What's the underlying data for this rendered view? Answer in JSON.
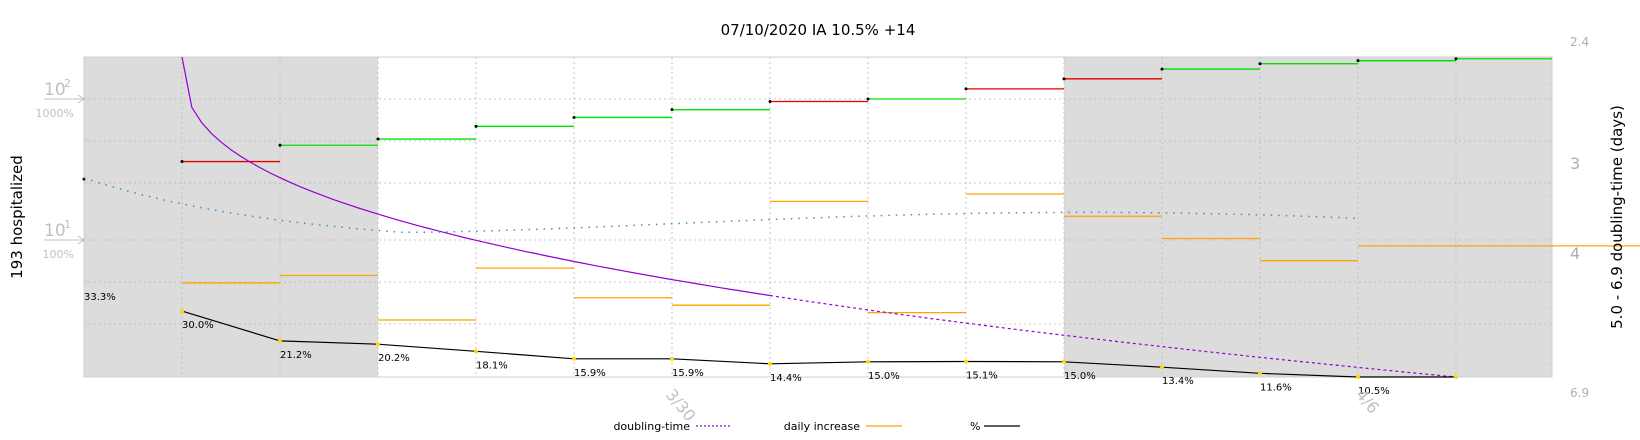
{
  "chart_data": {
    "type": "line",
    "title": "07/10/2020 IA 10.5% +14",
    "ylabel_left": "193 hospitalized",
    "ylabel_right": "5.0 - 6.9 doubling-time (days)",
    "y_left_scale": "log",
    "y_left_ticks": [
      {
        "value": 100,
        "label": "10",
        "exp": "2",
        "pct": "1000%"
      },
      {
        "value": 10,
        "label": "10",
        "exp": "1",
        "pct": "100%"
      }
    ],
    "y_right_ticks": [
      "2.4",
      "3",
      "4",
      "4",
      "6.9"
    ],
    "x_tick_labels": [
      "3/30",
      "4/6"
    ],
    "grid": true,
    "shaded_regions": "weekends (gray background)",
    "legend": [
      {
        "label": "doubling-time",
        "color": "#9400d3",
        "style": "dotted"
      },
      {
        "label": "daily increase",
        "color": "#ffa500",
        "style": "solid"
      },
      {
        "label": "%",
        "color": "#000000",
        "style": "solid"
      }
    ],
    "daily_pct_labels": [
      "33.3%",
      "30.0%",
      "21.2%",
      "20.2%",
      "18.1%",
      "15.9%",
      "15.9%",
      "14.4%",
      "15.0%",
      "15.1%",
      "15.0%",
      "13.4%",
      "11.6%",
      "10.5%"
    ],
    "daily_pct_values": [
      33.3,
      30.0,
      21.2,
      20.2,
      18.1,
      15.9,
      15.9,
      14.4,
      15.0,
      15.1,
      15.0,
      13.4,
      11.6,
      10.5
    ],
    "hospitalized_steps": [
      {
        "value": 36,
        "color": "red"
      },
      {
        "value": 47,
        "color": "green"
      },
      {
        "value": 52,
        "color": "green"
      },
      {
        "value": 64,
        "color": "green"
      },
      {
        "value": 74,
        "color": "green"
      },
      {
        "value": 84,
        "color": "green"
      },
      {
        "value": 96,
        "color": "red"
      },
      {
        "value": 100,
        "color": "green"
      },
      {
        "value": 118,
        "color": "red"
      },
      {
        "value": 139,
        "color": "red"
      },
      {
        "value": 163,
        "color": "green"
      },
      {
        "value": 178,
        "color": "green"
      },
      {
        "value": 187,
        "color": "green"
      },
      {
        "value": 193,
        "color": "green"
      }
    ],
    "daily_increase_steps": [
      9,
      10,
      4,
      11,
      7,
      6,
      20,
      5,
      21,
      18,
      15,
      12,
      14,
      14
    ],
    "doubling_time_start": 2.4,
    "doubling_time_end": 6.9
  }
}
